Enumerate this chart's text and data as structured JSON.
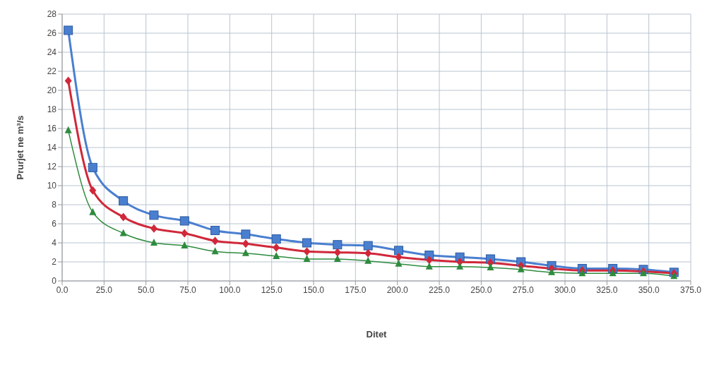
{
  "chart_data": {
    "type": "line",
    "xlabel": "Ditet",
    "ylabel": "Prurjet ne m³/s",
    "x": [
      3.65,
      18.25,
      36.5,
      54.75,
      73,
      91.25,
      109.5,
      127.75,
      146,
      164.25,
      182.5,
      200.75,
      219,
      237.25,
      255.5,
      273.75,
      292,
      310.25,
      328.5,
      346.75,
      365
    ],
    "series": [
      {
        "color": "#4a7fd0",
        "marker": "square",
        "values": [
          26.3,
          11.9,
          8.4,
          6.9,
          6.3,
          5.3,
          4.9,
          4.4,
          4.0,
          3.8,
          3.7,
          3.2,
          2.7,
          2.5,
          2.3,
          2.0,
          1.6,
          1.3,
          1.3,
          1.2,
          0.9
        ]
      },
      {
        "color": "#d0283a",
        "marker": "diamond",
        "values": [
          21.0,
          9.5,
          6.7,
          5.5,
          5.0,
          4.2,
          3.9,
          3.5,
          3.1,
          3.0,
          2.9,
          2.5,
          2.2,
          2.0,
          1.9,
          1.6,
          1.3,
          1.1,
          1.1,
          1.0,
          0.8
        ]
      },
      {
        "color": "#2e8b3e",
        "marker": "triangle",
        "values": [
          15.8,
          7.2,
          5.0,
          4.0,
          3.7,
          3.1,
          2.9,
          2.6,
          2.3,
          2.3,
          2.1,
          1.8,
          1.5,
          1.5,
          1.4,
          1.2,
          0.9,
          0.8,
          0.8,
          0.8,
          0.5
        ]
      }
    ],
    "xlim": [
      0,
      375
    ],
    "xticks": [
      {
        "value": 0,
        "label": "0.0"
      },
      {
        "value": 25,
        "label": "25.0"
      },
      {
        "value": 50,
        "label": "50.0"
      },
      {
        "value": 75,
        "label": "75.0"
      },
      {
        "value": 100,
        "label": "100.0"
      },
      {
        "value": 125,
        "label": "125.0"
      },
      {
        "value": 150,
        "label": "150.0"
      },
      {
        "value": 175,
        "label": "175.0"
      },
      {
        "value": 200,
        "label": "200.0"
      },
      {
        "value": 225,
        "label": "225.0"
      },
      {
        "value": 250,
        "label": "250.0"
      },
      {
        "value": 275,
        "label": "275.0"
      },
      {
        "value": 300,
        "label": "300.0"
      },
      {
        "value": 325,
        "label": "325.0"
      },
      {
        "value": 350,
        "label": "350.0"
      },
      {
        "value": 375,
        "label": "375.0"
      }
    ],
    "ylim": [
      0,
      28
    ],
    "yticks": [
      0,
      2,
      4,
      6,
      8,
      10,
      12,
      14,
      16,
      18,
      20,
      22,
      24,
      26,
      28
    ],
    "grid": true,
    "line_style": "solid"
  }
}
